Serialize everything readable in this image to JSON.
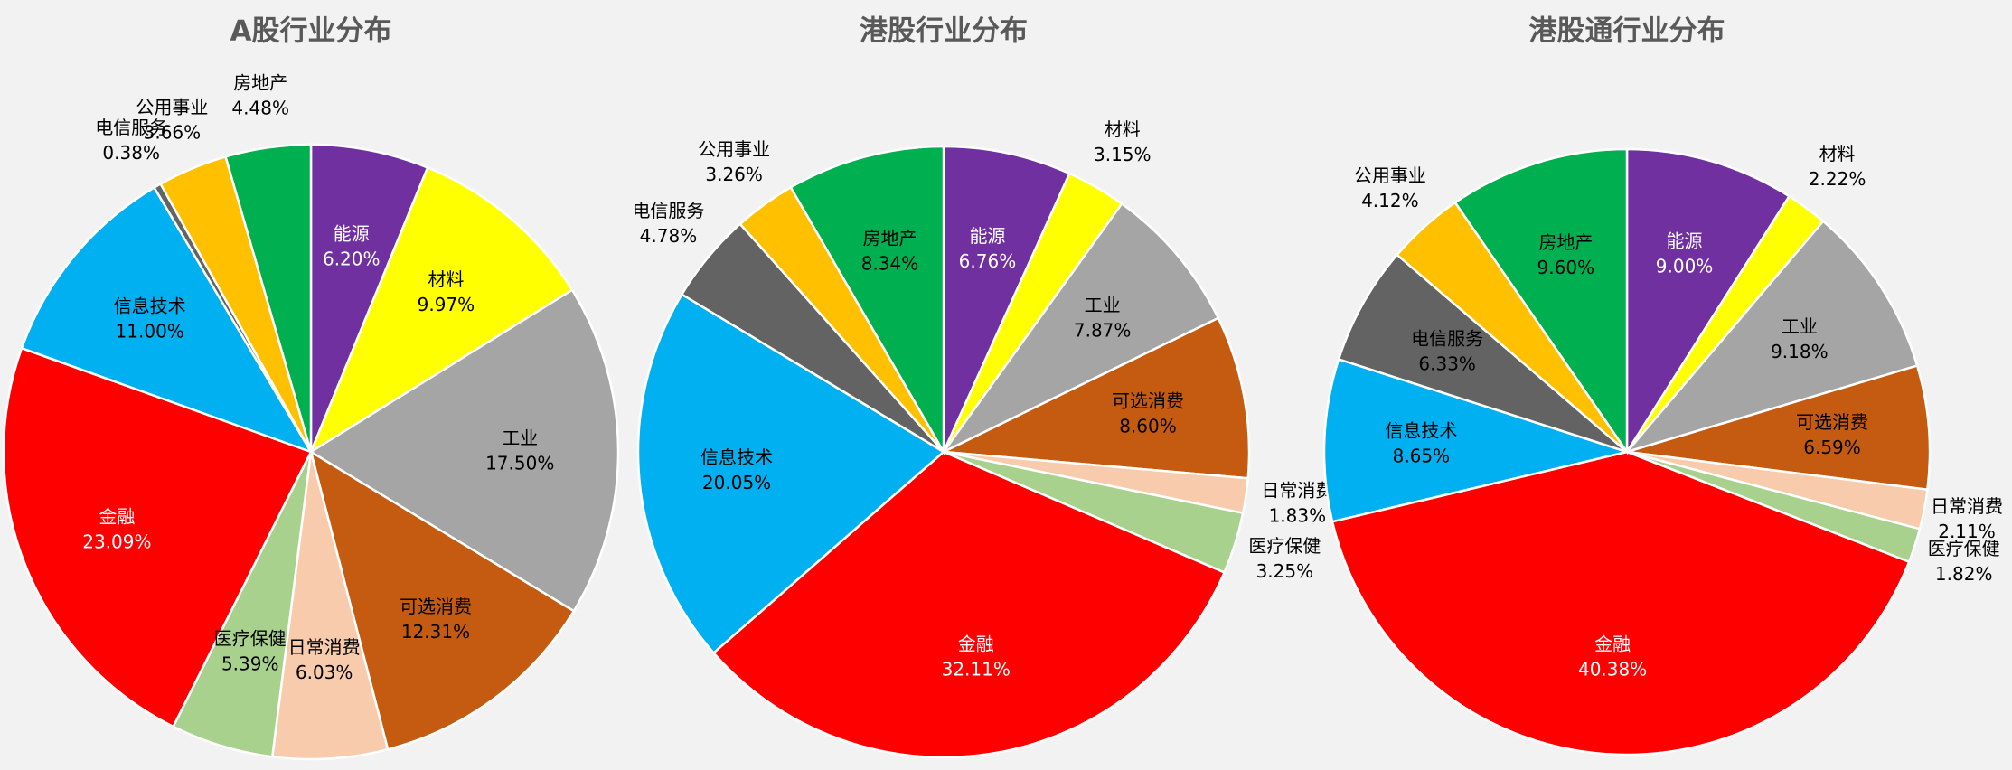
{
  "chart_data": [
    {
      "type": "pie",
      "title": "A股行业分布",
      "categories": [
        "能源",
        "材料",
        "工业",
        "可选消费",
        "日常消费",
        "医疗保健",
        "金融",
        "信息技术",
        "电信服务",
        "公用事业",
        "房地产"
      ],
      "values": [
        6.2,
        9.97,
        17.5,
        12.31,
        6.03,
        5.39,
        23.09,
        11.0,
        0.38,
        3.66,
        4.48
      ],
      "value_labels": [
        "6.20%",
        "9.97%",
        "17.50%",
        "12.31%",
        "6.03%",
        "5.39%",
        "23.09%",
        "11.00%",
        "0.38%",
        "3.66%",
        "4.48%"
      ],
      "colors": [
        "#7030a0",
        "#ffff00",
        "#a5a5a5",
        "#c55a11",
        "#f8cbad",
        "#a9d18e",
        "#ff0000",
        "#00b0f0",
        "#636363",
        "#ffc000",
        "#00b050"
      ]
    },
    {
      "type": "pie",
      "title": "港股行业分布",
      "categories": [
        "能源",
        "材料",
        "工业",
        "可选消费",
        "日常消费",
        "医疗保健",
        "金融",
        "信息技术",
        "电信服务",
        "公用事业",
        "房地产"
      ],
      "values": [
        6.76,
        3.15,
        7.87,
        8.6,
        1.83,
        3.25,
        32.11,
        20.05,
        4.78,
        3.26,
        8.34
      ],
      "value_labels": [
        "6.76%",
        "3.15%",
        "7.87%",
        "8.60%",
        "1.83%",
        "3.25%",
        "32.11%",
        "20.05%",
        "4.78%",
        "3.26%",
        "8.34%"
      ],
      "colors": [
        "#7030a0",
        "#ffff00",
        "#a5a5a5",
        "#c55a11",
        "#f8cbad",
        "#a9d18e",
        "#ff0000",
        "#00b0f0",
        "#636363",
        "#ffc000",
        "#00b050"
      ]
    },
    {
      "type": "pie",
      "title": "港股通行业分布",
      "categories": [
        "能源",
        "材料",
        "工业",
        "可选消费",
        "日常消费",
        "医疗保健",
        "金融",
        "信息技术",
        "电信服务",
        "公用事业",
        "房地产"
      ],
      "values": [
        9.0,
        2.22,
        9.18,
        6.59,
        2.11,
        1.82,
        40.38,
        8.65,
        6.33,
        4.12,
        9.6
      ],
      "value_labels": [
        "9.00%",
        "2.22%",
        "9.18%",
        "6.59%",
        "2.11%",
        "1.82%",
        "40.38%",
        "8.65%",
        "6.33%",
        "4.12%",
        "9.60%"
      ],
      "colors": [
        "#7030a0",
        "#ffff00",
        "#a5a5a5",
        "#c55a11",
        "#f8cbad",
        "#a9d18e",
        "#ff0000",
        "#00b0f0",
        "#636363",
        "#ffc000",
        "#00b050"
      ]
    }
  ]
}
